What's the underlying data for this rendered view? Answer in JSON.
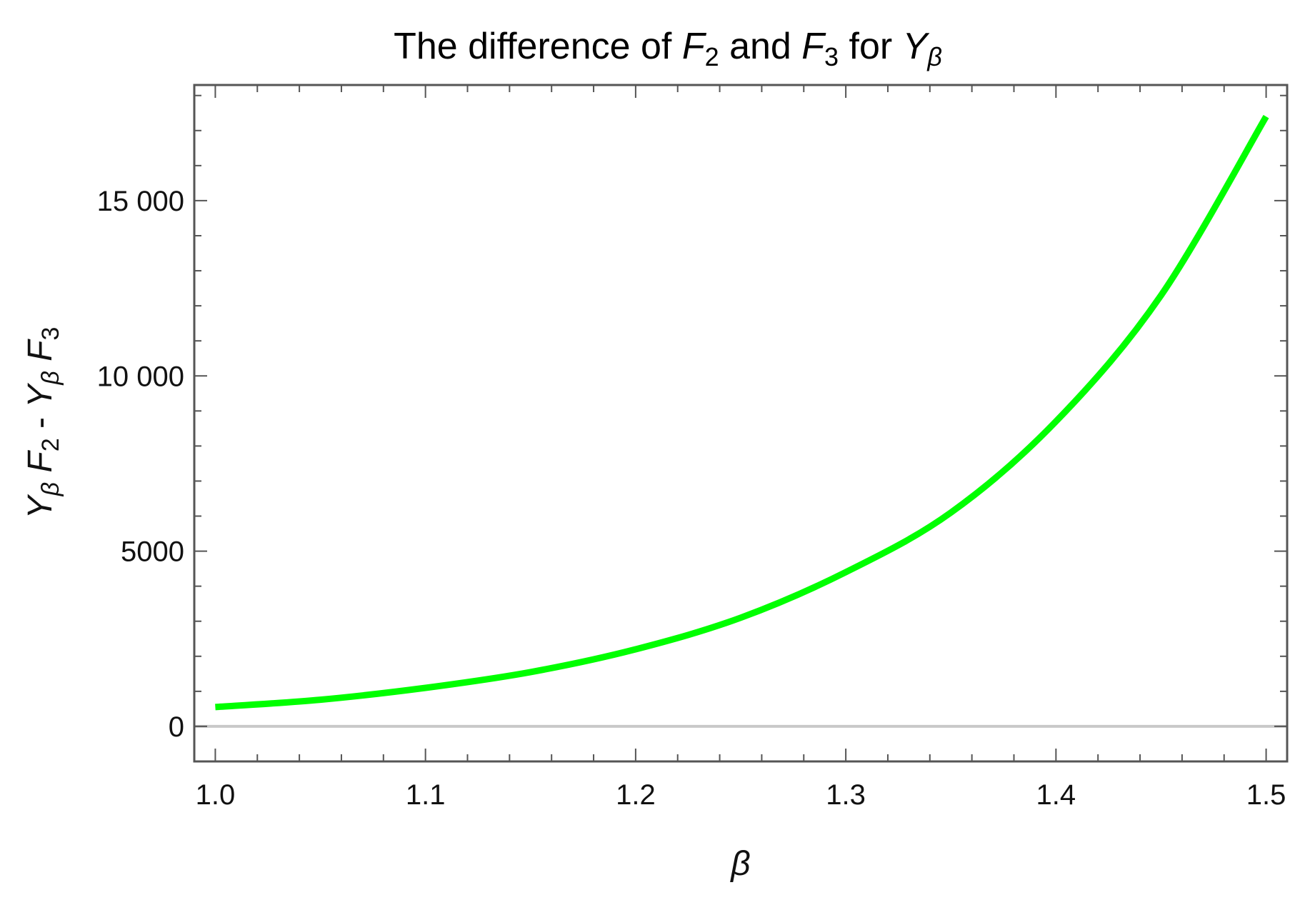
{
  "chart_data": {
    "type": "line",
    "title": {
      "text": "The difference of",
      "term1": "F",
      "term1_sub": "2",
      "joiner": "and",
      "term2": "F",
      "term2_sub": "3",
      "joiner2": "for",
      "term3": "Y",
      "term3_sub": "β"
    },
    "xlabel": "β",
    "ylabel": {
      "a": "Y",
      "a_sub": "β",
      "b": "F",
      "b_sub": "2",
      "minus": "-",
      "c": "Y",
      "c_sub": "β",
      "d": "F",
      "d_sub": "3"
    },
    "xlim": [
      0.99,
      1.51
    ],
    "ylim": [
      -1000,
      18300
    ],
    "x_ticks": [
      1.0,
      1.1,
      1.2,
      1.3,
      1.4,
      1.5
    ],
    "x_tick_labels": [
      "1.0",
      "1.1",
      "1.2",
      "1.3",
      "1.4",
      "1.5"
    ],
    "y_ticks": [
      0,
      5000,
      10000,
      15000
    ],
    "y_tick_labels": [
      "0",
      "5000",
      "10 000",
      "15 000"
    ],
    "grid": false,
    "zero_line": true,
    "series": [
      {
        "color": "#00ff00",
        "x": [
          1.0,
          1.05,
          1.1,
          1.15,
          1.2,
          1.25,
          1.3,
          1.35,
          1.4,
          1.45,
          1.5
        ],
        "values": [
          550,
          760,
          1100,
          1550,
          2200,
          3100,
          4400,
          6100,
          8700,
          12300,
          17400
        ]
      }
    ]
  }
}
